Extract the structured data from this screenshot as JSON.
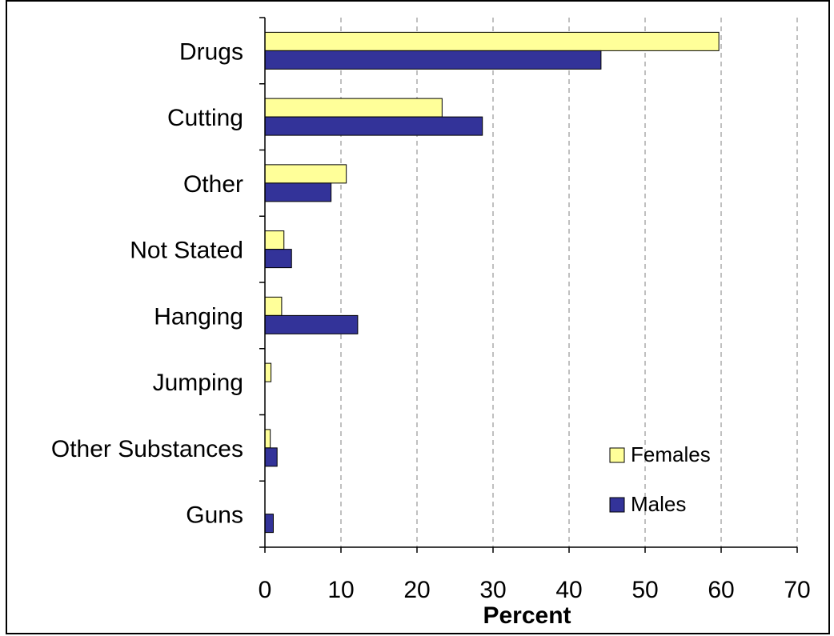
{
  "chart_data": {
    "type": "bar",
    "orientation": "horizontal",
    "categories": [
      "Drugs",
      "Cutting",
      "Other",
      "Not Stated",
      "Hanging",
      "Jumping",
      "Other Substances",
      "Guns"
    ],
    "series": [
      {
        "name": "Females",
        "color": "#ffff99",
        "values": [
          59.7,
          23.3,
          10.7,
          2.5,
          2.2,
          0.8,
          0.7,
          0
        ]
      },
      {
        "name": "Males",
        "color": "#333399",
        "values": [
          44.2,
          28.6,
          8.7,
          3.5,
          12.2,
          0,
          1.6,
          1.1
        ]
      }
    ],
    "title": "",
    "xlabel": "Percent",
    "ylabel": "",
    "xlim": [
      0,
      70
    ],
    "xticks": [
      0,
      10,
      20,
      30,
      40,
      50,
      60,
      70
    ],
    "grid": "vertical-dashed",
    "legend_position": "bottom-right"
  }
}
